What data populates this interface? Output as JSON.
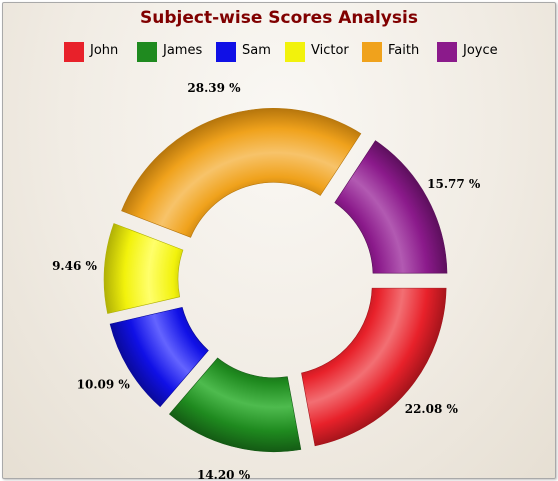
{
  "chart_data": {
    "type": "pie",
    "subtype": "doughnut",
    "title": "Subject-wise Scores Analysis",
    "legend_position": "top",
    "categories": [
      "John",
      "James",
      "Sam",
      "Victor",
      "Faith",
      "Joyce"
    ],
    "values": [
      22.08,
      14.2,
      10.09,
      9.46,
      28.39,
      15.77
    ],
    "value_labels": [
      "22.08 %",
      "14.20 %",
      "10.09 %",
      "9.46 %",
      "28.39 %",
      "15.77 %"
    ],
    "colors": [
      "#e8212a",
      "#1f8a1f",
      "#1010e6",
      "#f2f20c",
      "#f0a21c",
      "#8b1a8b"
    ],
    "gradient_highlight": [
      "#f26f73",
      "#4ebb4e",
      "#6464ff",
      "#ffff6b",
      "#f7c36a",
      "#b25ab2"
    ],
    "gradient_shadow": [
      "#a3141b",
      "#145a14",
      "#0a0a9a",
      "#b0b006",
      "#b5750c",
      "#5c0f5c"
    ]
  }
}
